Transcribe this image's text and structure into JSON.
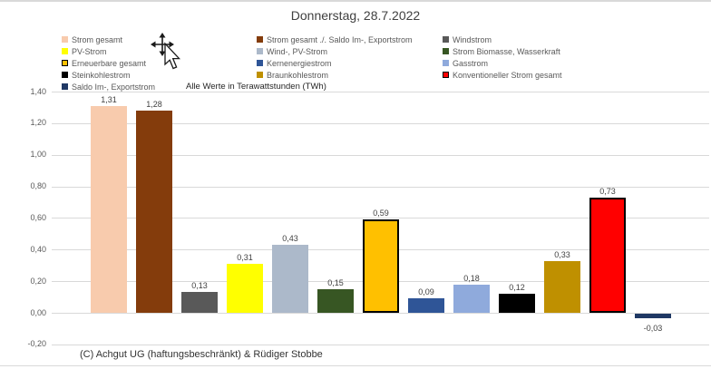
{
  "title": "Donnerstag, 28.7.2022",
  "note": "Alle Werte in Terawattstunden (TWh)",
  "footer": "(C) Achgut UG (haftungsbeschränkt) & Rüdiger Stobbe",
  "icons": {
    "cursor": "move-cursor-with-pointer"
  },
  "colors": {
    "grid": "#d9d9d9",
    "axis_text": "#595959",
    "legend_text": "#595959",
    "title_text": "#404040",
    "value_label_text": "#404040"
  },
  "legend": {
    "columns": [
      [
        {
          "label": "Strom gesamt",
          "color": "#F8CBAD"
        },
        {
          "label": "PV-Strom",
          "color": "#FFFF00"
        },
        {
          "label": "Erneuerbare gesamt",
          "color": "#FFC000",
          "border": true
        },
        {
          "label": "Steinkohlestrom",
          "color": "#000000"
        },
        {
          "label": "Saldo Im-, Exportstrom",
          "color": "#1F3864"
        }
      ],
      [
        {
          "label": "Strom gesamt ./. Saldo Im-, Exportstrom",
          "color": "#843C0C"
        },
        {
          "label": "Wind-, PV-Strom",
          "color": "#ACB9CA"
        },
        {
          "label": "Kernenergiestrom",
          "color": "#2F5597"
        },
        {
          "label": "Braunkohlestrom",
          "color": "#BF9000"
        }
      ],
      [
        {
          "label": "Windstrom",
          "color": "#595959"
        },
        {
          "label": "Strom Biomasse, Wasserkraft",
          "color": "#375623"
        },
        {
          "label": "Gasstrom",
          "color": "#8FAADC"
        },
        {
          "label": "Konventioneller Strom gesamt",
          "color": "#FF0000",
          "border": true
        }
      ]
    ]
  },
  "chart_data": {
    "type": "bar",
    "title": "Donnerstag, 28.7.2022",
    "subtitle": "Alle Werte in Terawattstunden (TWh)",
    "xlabel": "",
    "ylabel": "",
    "ylim": [
      -0.2,
      1.4
    ],
    "grid": true,
    "legend_position": "top",
    "yticks": [
      {
        "label": "1,40",
        "value": 1.4
      },
      {
        "label": "1,20",
        "value": 1.2
      },
      {
        "label": "1,00",
        "value": 1.0
      },
      {
        "label": "0,80",
        "value": 0.8
      },
      {
        "label": "0,60",
        "value": 0.6
      },
      {
        "label": "0,40",
        "value": 0.4
      },
      {
        "label": "0,20",
        "value": 0.2
      },
      {
        "label": "0,00",
        "value": 0.0
      },
      {
        "label": "-0,20",
        "value": -0.2
      }
    ],
    "bars": [
      {
        "label": "Strom gesamt",
        "value": 1.31,
        "display": "1,31",
        "color": "#F8CBAD"
      },
      {
        "label": "Strom gesamt ./. Saldo Im-, Exportstrom",
        "value": 1.28,
        "display": "1,28",
        "color": "#843C0C"
      },
      {
        "label": "Windstrom",
        "value": 0.13,
        "display": "0,13",
        "color": "#595959"
      },
      {
        "label": "PV-Strom",
        "value": 0.31,
        "display": "0,31",
        "color": "#FFFF00"
      },
      {
        "label": "Wind-, PV-Strom",
        "value": 0.43,
        "display": "0,43",
        "color": "#ACB9CA"
      },
      {
        "label": "Strom Biomasse, Wasserkraft",
        "value": 0.15,
        "display": "0,15",
        "color": "#375623"
      },
      {
        "label": "Erneuerbare gesamt",
        "value": 0.59,
        "display": "0,59",
        "color": "#FFC000",
        "border": true
      },
      {
        "label": "Kernenergiestrom",
        "value": 0.09,
        "display": "0,09",
        "color": "#2F5597"
      },
      {
        "label": "Gasstrom",
        "value": 0.18,
        "display": "0,18",
        "color": "#8FAADC"
      },
      {
        "label": "Steinkohlestrom",
        "value": 0.12,
        "display": "0,12",
        "color": "#000000"
      },
      {
        "label": "Braunkohlestrom",
        "value": 0.33,
        "display": "0,33",
        "color": "#BF9000"
      },
      {
        "label": "Konventioneller Strom gesamt",
        "value": 0.73,
        "display": "0,73",
        "color": "#FF0000",
        "border": true
      },
      {
        "label": "Saldo Im-, Exportstrom",
        "value": -0.03,
        "display": "-0,03",
        "color": "#1F3864"
      }
    ]
  }
}
